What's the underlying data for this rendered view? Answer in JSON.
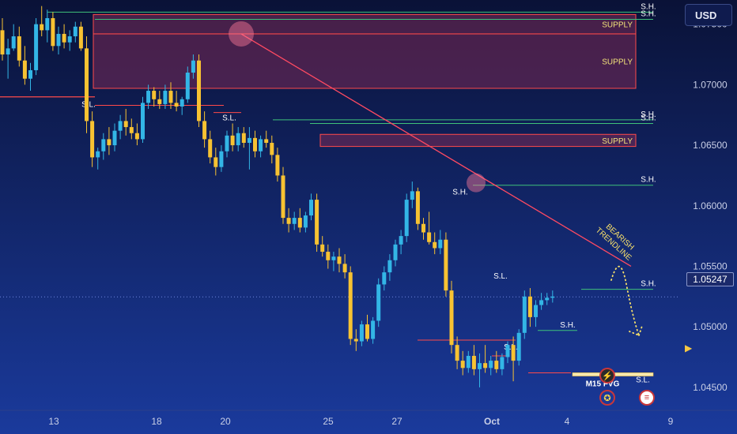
{
  "header": {
    "currency_button": "USD"
  },
  "price_scale": {
    "ticks": [
      "1.07500",
      "1.07000",
      "1.06500",
      "1.06000",
      "1.05500",
      "1.05000",
      "1.04500"
    ],
    "current_price": "1.05247"
  },
  "time_axis": {
    "labels": [
      "13",
      "18",
      "20",
      "25",
      "27",
      "Oct",
      "4",
      "9"
    ]
  },
  "colors": {
    "background_top": "#0a1237",
    "background_bottom": "#1a3a9c",
    "bull": "#33b6e6",
    "bear": "#f7c232",
    "supply_fill": "#7a2a55",
    "supply_border": "#ff4a4a",
    "swing_high": "#3fc27a",
    "swing_low": "#ff4a4a",
    "trendline": "#ff4a62",
    "annotation": "#f7e06a"
  },
  "annotations": {
    "supply_zones": [
      "SUPPLY",
      "SUPPLY",
      "SUPPLY"
    ],
    "swing_high_labels": [
      "S.H.",
      "S.H.",
      "S.H.",
      "S.H.",
      "S.H.",
      "S.H.",
      "S.H."
    ],
    "swing_low_labels": [
      "S.L.",
      "S.L.",
      "S.L.",
      "S.L.",
      "S.L."
    ],
    "fvg_label": "M15 FVG",
    "trendline_label": "BEARISH TRENDLINE"
  },
  "chart_data": {
    "type": "candlestick",
    "price_range": [
      1.0431,
      1.077
    ],
    "time_labels": [
      "13",
      "18",
      "20",
      "25",
      "27",
      "Oct",
      "4",
      "9"
    ],
    "current_price": 1.05247,
    "candles": [
      [
        1.0745,
        1.0755,
        1.072,
        1.0725
      ],
      [
        1.0725,
        1.0738,
        1.0705,
        1.073
      ],
      [
        1.073,
        1.075,
        1.0728,
        1.074
      ],
      [
        1.074,
        1.0748,
        1.0715,
        1.072
      ],
      [
        1.072,
        1.0732,
        1.07,
        1.0705
      ],
      [
        1.0705,
        1.0718,
        1.0695,
        1.0712
      ],
      [
        1.0712,
        1.0755,
        1.0708,
        1.075
      ],
      [
        1.075,
        1.0765,
        1.074,
        1.0745
      ],
      [
        1.0745,
        1.0762,
        1.0735,
        1.0755
      ],
      [
        1.0755,
        1.076,
        1.0728,
        1.0732
      ],
      [
        1.0732,
        1.0748,
        1.0725,
        1.0742
      ],
      [
        1.0742,
        1.075,
        1.073,
        1.0735
      ],
      [
        1.0735,
        1.0745,
        1.0728,
        1.074
      ],
      [
        1.074,
        1.0752,
        1.0735,
        1.0748
      ],
      [
        1.0748,
        1.0752,
        1.0728,
        1.073
      ],
      [
        1.073,
        1.074,
        1.066,
        1.067
      ],
      [
        1.067,
        1.0678,
        1.0632,
        1.064
      ],
      [
        1.064,
        1.0648,
        1.063,
        1.0645
      ],
      [
        1.0645,
        1.066,
        1.0638,
        1.0655
      ],
      [
        1.0655,
        1.0665,
        1.0642,
        1.065
      ],
      [
        1.065,
        1.0668,
        1.0645,
        1.0662
      ],
      [
        1.0662,
        1.0675,
        1.0655,
        1.067
      ],
      [
        1.067,
        1.068,
        1.0658,
        1.0665
      ],
      [
        1.0665,
        1.0672,
        1.0655,
        1.066
      ],
      [
        1.066,
        1.0668,
        1.065,
        1.0655
      ],
      [
        1.0655,
        1.069,
        1.0652,
        1.0685
      ],
      [
        1.0685,
        1.07,
        1.068,
        1.0695
      ],
      [
        1.0695,
        1.0698,
        1.0682,
        1.0688
      ],
      [
        1.0688,
        1.0695,
        1.068,
        1.0684
      ],
      [
        1.0684,
        1.07,
        1.068,
        1.0695
      ],
      [
        1.0695,
        1.0702,
        1.068,
        1.0685
      ],
      [
        1.0685,
        1.0695,
        1.0678,
        1.0682
      ],
      [
        1.0682,
        1.069,
        1.0675,
        1.0688
      ],
      [
        1.0688,
        1.0715,
        1.0685,
        1.071
      ],
      [
        1.071,
        1.0725,
        1.0705,
        1.072
      ],
      [
        1.072,
        1.0725,
        1.0665,
        1.067
      ],
      [
        1.067,
        1.0678,
        1.0648,
        1.0655
      ],
      [
        1.0655,
        1.0662,
        1.0635,
        1.064
      ],
      [
        1.064,
        1.0648,
        1.0625,
        1.0632
      ],
      [
        1.0632,
        1.065,
        1.0628,
        1.0645
      ],
      [
        1.0645,
        1.0662,
        1.064,
        1.0658
      ],
      [
        1.0658,
        1.0668,
        1.0645,
        1.065
      ],
      [
        1.065,
        1.0665,
        1.0645,
        1.066
      ],
      [
        1.066,
        1.0665,
        1.0648,
        1.0652
      ],
      [
        1.0652,
        1.0665,
        1.063,
        1.0656
      ],
      [
        1.0656,
        1.0662,
        1.064,
        1.0645
      ],
      [
        1.0645,
        1.0658,
        1.064,
        1.0655
      ],
      [
        1.0655,
        1.0662,
        1.0648,
        1.0652
      ],
      [
        1.0652,
        1.0658,
        1.0635,
        1.0642
      ],
      [
        1.0642,
        1.0648,
        1.062,
        1.0625
      ],
      [
        1.0625,
        1.0632,
        1.0585,
        1.059
      ],
      [
        1.059,
        1.0598,
        1.0578,
        1.0585
      ],
      [
        1.0585,
        1.0595,
        1.058,
        1.059
      ],
      [
        1.059,
        1.0598,
        1.0578,
        1.0582
      ],
      [
        1.0582,
        1.0595,
        1.0578,
        1.0592
      ],
      [
        1.0592,
        1.061,
        1.0588,
        1.0605
      ],
      [
        1.0605,
        1.061,
        1.0562,
        1.0568
      ],
      [
        1.0568,
        1.0575,
        1.0558,
        1.0562
      ],
      [
        1.0562,
        1.0568,
        1.0548,
        1.0555
      ],
      [
        1.0555,
        1.0562,
        1.0546,
        1.0558
      ],
      [
        1.0558,
        1.0565,
        1.0545,
        1.0552
      ],
      [
        1.0552,
        1.056,
        1.054,
        1.0545
      ],
      [
        1.0545,
        1.055,
        1.0485,
        1.049
      ],
      [
        1.049,
        1.0498,
        1.048,
        1.0488
      ],
      [
        1.0488,
        1.0505,
        1.0484,
        1.0502
      ],
      [
        1.0502,
        1.051,
        1.0488,
        1.049
      ],
      [
        1.049,
        1.0508,
        1.0486,
        1.0505
      ],
      [
        1.0505,
        1.054,
        1.05,
        1.0535
      ],
      [
        1.0535,
        1.055,
        1.053,
        1.0545
      ],
      [
        1.0545,
        1.056,
        1.0538,
        1.0555
      ],
      [
        1.0555,
        1.0572,
        1.055,
        1.0568
      ],
      [
        1.0568,
        1.058,
        1.056,
        1.0575
      ],
      [
        1.0575,
        1.061,
        1.057,
        1.0605
      ],
      [
        1.0605,
        1.062,
        1.0598,
        1.0612
      ],
      [
        1.0612,
        1.0615,
        1.058,
        1.0585
      ],
      [
        1.0585,
        1.059,
        1.0572,
        1.0578
      ],
      [
        1.0578,
        1.0595,
        1.0568,
        1.057
      ],
      [
        1.057,
        1.0578,
        1.056,
        1.0565
      ],
      [
        1.0565,
        1.058,
        1.056,
        1.0572
      ],
      [
        1.0572,
        1.0578,
        1.0525,
        1.053
      ],
      [
        1.053,
        1.0538,
        1.0478,
        1.0485
      ],
      [
        1.0485,
        1.0492,
        1.0465,
        1.0472
      ],
      [
        1.0472,
        1.048,
        1.046,
        1.0466
      ],
      [
        1.0466,
        1.048,
        1.0462,
        1.0476
      ],
      [
        1.0476,
        1.0485,
        1.046,
        1.0465
      ],
      [
        1.0465,
        1.0478,
        1.045,
        1.047
      ],
      [
        1.047,
        1.0485,
        1.0462,
        1.0466
      ],
      [
        1.0466,
        1.0476,
        1.046,
        1.0472
      ],
      [
        1.0472,
        1.048,
        1.0462,
        1.0465
      ],
      [
        1.0465,
        1.0478,
        1.046,
        1.0475
      ],
      [
        1.0475,
        1.0488,
        1.047,
        1.0485
      ],
      [
        1.0485,
        1.0492,
        1.0455,
        1.0472
      ],
      [
        1.0472,
        1.0498,
        1.0468,
        1.0495
      ],
      [
        1.0495,
        1.053,
        1.049,
        1.0525
      ],
      [
        1.0525,
        1.0532,
        1.05,
        1.0508
      ],
      [
        1.0508,
        1.0522,
        1.05,
        1.0518
      ],
      [
        1.0518,
        1.0528,
        1.0514,
        1.0522
      ],
      [
        1.0522,
        1.0528,
        1.0518,
        1.0524
      ],
      [
        1.0524,
        1.053,
        1.052,
        1.0525
      ]
    ],
    "supply_zones": [
      [
        1.0758,
        1.0742
      ],
      [
        1.0742,
        1.0697
      ],
      [
        1.0659,
        1.0649
      ]
    ],
    "swing_highs": [
      1.076,
      1.0754,
      1.0671,
      1.0668,
      1.0617,
      1.0531,
      1.0497
    ],
    "swing_lows": [
      1.0683,
      1.0677,
      1.0489,
      1.0476,
      1.0462
    ],
    "fvg": [
      1.0462,
      1.046
    ]
  }
}
